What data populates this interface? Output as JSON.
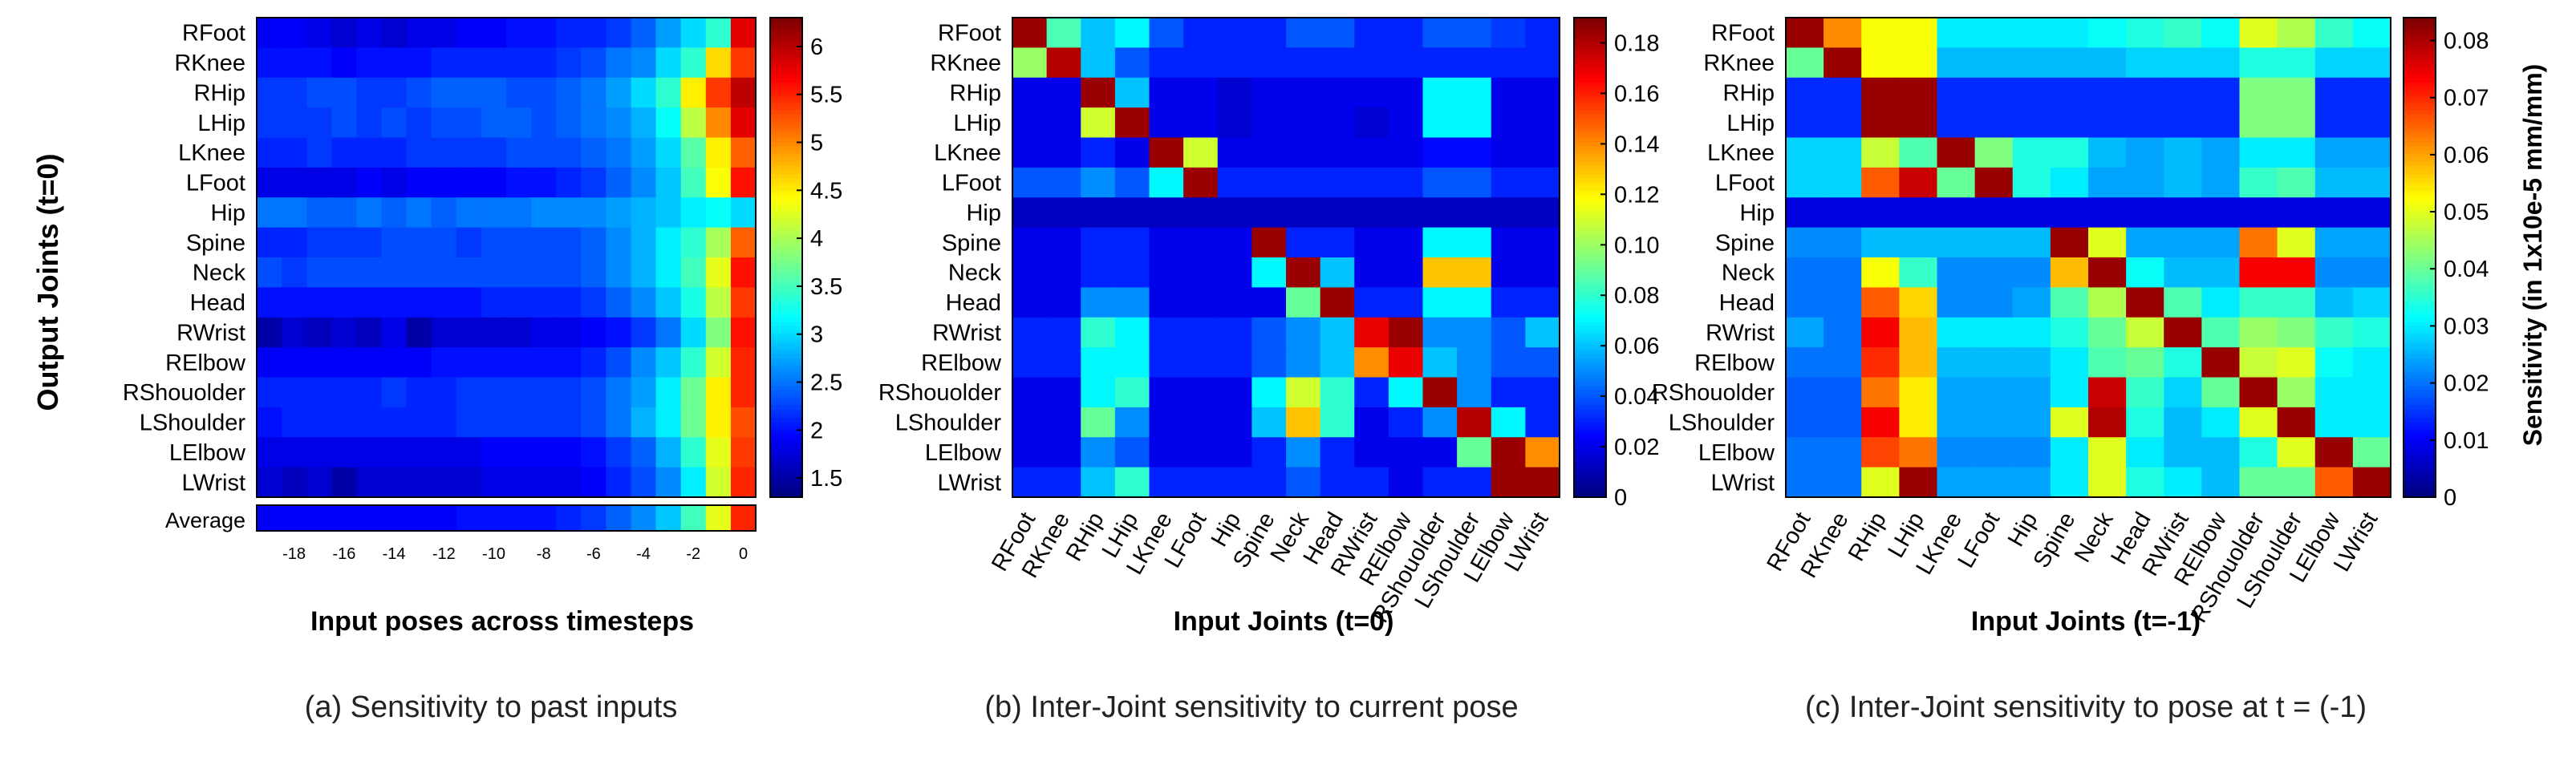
{
  "y_axis_label": "Output Joints (t=0)",
  "colorbar_label": "Sensitivity (in 1x10e-5 mm/mm)",
  "average_label": "Average",
  "chart_data": [
    {
      "type": "heatmap",
      "caption": "(a) Sensitivity to past inputs",
      "xlabel": "Input poses across timesteps",
      "ylabel": "Output Joints (t=0)",
      "rows": [
        "RFoot",
        "RKnee",
        "RHip",
        "LHip",
        "LKnee",
        "LFoot",
        "Hip",
        "Spine",
        "Neck",
        "Head",
        "RWrist",
        "RElbow",
        "RShouolder",
        "LShoulder",
        "LElbow",
        "LWrist"
      ],
      "x_ticks": [
        "-18",
        "-16",
        "-14",
        "-12",
        "-10",
        "-8",
        "-6",
        "-4",
        "-2",
        "0"
      ],
      "x_tick_values": [
        -18,
        -16,
        -14,
        -12,
        -10,
        -8,
        -6,
        -4,
        -2,
        0
      ],
      "x": [
        -19,
        -18,
        -17,
        -16,
        -15,
        -14,
        -13,
        -12,
        -11,
        -10,
        -9,
        -8,
        -7,
        -6,
        -5,
        -4,
        -3,
        -2,
        -1,
        0
      ],
      "values": [
        [
          1.9,
          1.9,
          1.8,
          1.7,
          1.8,
          1.7,
          1.8,
          1.8,
          1.9,
          1.9,
          2.0,
          2.0,
          2.1,
          2.1,
          2.2,
          2.4,
          2.7,
          3.0,
          3.4,
          5.8
        ],
        [
          2.0,
          2.0,
          2.0,
          1.9,
          2.0,
          2.0,
          2.0,
          2.1,
          2.1,
          2.1,
          2.1,
          2.1,
          2.2,
          2.3,
          2.5,
          2.6,
          3.0,
          3.4,
          4.6,
          5.4
        ],
        [
          2.2,
          2.2,
          2.3,
          2.3,
          2.2,
          2.2,
          2.3,
          2.4,
          2.4,
          2.4,
          2.3,
          2.3,
          2.4,
          2.5,
          2.7,
          3.0,
          3.4,
          4.5,
          5.4,
          6.0
        ],
        [
          2.2,
          2.2,
          2.2,
          2.3,
          2.2,
          2.3,
          2.2,
          2.3,
          2.3,
          2.4,
          2.4,
          2.3,
          2.4,
          2.5,
          2.6,
          2.8,
          3.2,
          4.1,
          5.0,
          5.8
        ],
        [
          2.1,
          2.1,
          2.2,
          2.1,
          2.1,
          2.1,
          2.2,
          2.2,
          2.2,
          2.2,
          2.3,
          2.3,
          2.3,
          2.4,
          2.5,
          2.7,
          3.0,
          3.6,
          4.5,
          5.2
        ],
        [
          1.8,
          1.8,
          1.8,
          1.8,
          1.9,
          1.8,
          1.9,
          1.9,
          1.9,
          1.9,
          2.0,
          2.0,
          2.1,
          2.2,
          2.4,
          2.6,
          2.9,
          3.5,
          4.4,
          5.6
        ],
        [
          2.5,
          2.5,
          2.4,
          2.4,
          2.5,
          2.4,
          2.5,
          2.4,
          2.5,
          2.5,
          2.5,
          2.6,
          2.6,
          2.6,
          2.7,
          2.8,
          2.9,
          3.1,
          3.2,
          3.0
        ],
        [
          2.1,
          2.1,
          2.2,
          2.2,
          2.2,
          2.3,
          2.3,
          2.3,
          2.2,
          2.3,
          2.3,
          2.3,
          2.3,
          2.4,
          2.6,
          2.8,
          3.1,
          3.4,
          4.0,
          5.2
        ],
        [
          2.3,
          2.2,
          2.3,
          2.3,
          2.3,
          2.3,
          2.3,
          2.3,
          2.3,
          2.3,
          2.3,
          2.3,
          2.3,
          2.4,
          2.6,
          2.8,
          3.1,
          3.5,
          4.3,
          5.6
        ],
        [
          2.0,
          2.0,
          2.0,
          2.0,
          2.0,
          2.0,
          2.0,
          2.0,
          2.0,
          2.1,
          2.1,
          2.1,
          2.1,
          2.2,
          2.4,
          2.6,
          2.9,
          3.3,
          4.1,
          5.4
        ],
        [
          1.5,
          1.7,
          1.6,
          1.7,
          1.6,
          1.8,
          1.5,
          1.7,
          1.7,
          1.7,
          1.7,
          1.8,
          1.8,
          1.9,
          2.0,
          2.2,
          2.5,
          3.0,
          3.8,
          5.6
        ],
        [
          1.9,
          1.9,
          1.9,
          1.9,
          1.9,
          1.9,
          1.9,
          2.0,
          2.0,
          2.0,
          2.0,
          2.0,
          2.0,
          2.1,
          2.3,
          2.6,
          2.9,
          3.4,
          4.2,
          5.5
        ],
        [
          2.1,
          2.1,
          2.1,
          2.1,
          2.1,
          2.2,
          2.1,
          2.1,
          2.2,
          2.2,
          2.2,
          2.2,
          2.2,
          2.3,
          2.5,
          2.7,
          3.1,
          3.7,
          4.5,
          5.5
        ],
        [
          2.0,
          2.1,
          2.1,
          2.1,
          2.1,
          2.1,
          2.1,
          2.1,
          2.2,
          2.2,
          2.2,
          2.2,
          2.2,
          2.3,
          2.5,
          2.8,
          3.1,
          3.7,
          4.5,
          5.3
        ],
        [
          1.8,
          1.8,
          1.8,
          1.8,
          1.8,
          1.8,
          1.8,
          1.8,
          1.8,
          1.9,
          1.9,
          1.9,
          1.9,
          2.0,
          2.2,
          2.4,
          2.8,
          3.4,
          4.3,
          5.4
        ],
        [
          1.7,
          1.6,
          1.7,
          1.5,
          1.7,
          1.7,
          1.7,
          1.7,
          1.7,
          1.8,
          1.8,
          1.8,
          1.8,
          1.9,
          2.1,
          2.3,
          2.6,
          3.1,
          4.2,
          5.5
        ]
      ],
      "average": [
        1.9,
        1.9,
        1.9,
        1.9,
        1.9,
        1.9,
        1.9,
        1.9,
        2.0,
        2.0,
        2.0,
        2.0,
        2.1,
        2.2,
        2.4,
        2.6,
        2.9,
        3.5,
        4.3,
        5.5
      ],
      "colorbar": {
        "min": 1.3,
        "max": 6.3,
        "ticks": [
          "6",
          "5.5",
          "5",
          "4.5",
          "4",
          "3.5",
          "3",
          "2.5",
          "2",
          "1.5"
        ],
        "tick_values": [
          6,
          5.5,
          5,
          4.5,
          4,
          3.5,
          3,
          2.5,
          2,
          1.5
        ]
      },
      "colormap": "jet"
    },
    {
      "type": "heatmap",
      "caption": "(b) Inter-Joint sensitivity to current pose",
      "xlabel": "Input Joints (t=0)",
      "rows": [
        "RFoot",
        "RKnee",
        "RHip",
        "LHip",
        "LKnee",
        "LFoot",
        "Hip",
        "Spine",
        "Neck",
        "Head",
        "RWrist",
        "RElbow",
        "RShouolder",
        "LShoulder",
        "LElbow",
        "LWrist"
      ],
      "cols": [
        "RFoot",
        "RKnee",
        "RHip",
        "LHip",
        "LKnee",
        "LFoot",
        "Hip",
        "Spine",
        "Neck",
        "Head",
        "RWrist",
        "RElbow",
        "RShouolder",
        "LShoulder",
        "LElbow",
        "LWrist"
      ],
      "values": [
        [
          0.185,
          0.085,
          0.06,
          0.07,
          0.04,
          0.03,
          0.03,
          0.03,
          0.04,
          0.04,
          0.03,
          0.03,
          0.04,
          0.04,
          0.035,
          0.03
        ],
        [
          0.1,
          0.18,
          0.06,
          0.04,
          0.03,
          0.03,
          0.03,
          0.03,
          0.03,
          0.03,
          0.03,
          0.03,
          0.03,
          0.03,
          0.03,
          0.03
        ],
        [
          0.02,
          0.02,
          0.185,
          0.06,
          0.02,
          0.02,
          0.015,
          0.02,
          0.02,
          0.02,
          0.02,
          0.02,
          0.07,
          0.07,
          0.02,
          0.02
        ],
        [
          0.02,
          0.02,
          0.11,
          0.185,
          0.02,
          0.02,
          0.015,
          0.02,
          0.02,
          0.02,
          0.015,
          0.02,
          0.07,
          0.07,
          0.02,
          0.02
        ],
        [
          0.02,
          0.02,
          0.03,
          0.02,
          0.185,
          0.11,
          0.02,
          0.02,
          0.02,
          0.02,
          0.02,
          0.02,
          0.025,
          0.025,
          0.02,
          0.02
        ],
        [
          0.04,
          0.04,
          0.05,
          0.04,
          0.07,
          0.185,
          0.03,
          0.03,
          0.03,
          0.03,
          0.03,
          0.03,
          0.04,
          0.04,
          0.03,
          0.03
        ],
        [
          0.012,
          0.012,
          0.012,
          0.012,
          0.012,
          0.012,
          0.012,
          0.012,
          0.012,
          0.012,
          0.012,
          0.012,
          0.012,
          0.012,
          0.012,
          0.012
        ],
        [
          0.02,
          0.02,
          0.03,
          0.03,
          0.02,
          0.02,
          0.02,
          0.185,
          0.03,
          0.03,
          0.02,
          0.02,
          0.07,
          0.07,
          0.02,
          0.02
        ],
        [
          0.02,
          0.02,
          0.03,
          0.03,
          0.02,
          0.02,
          0.02,
          0.07,
          0.185,
          0.06,
          0.02,
          0.02,
          0.13,
          0.13,
          0.02,
          0.02
        ],
        [
          0.02,
          0.02,
          0.05,
          0.05,
          0.02,
          0.02,
          0.02,
          0.02,
          0.09,
          0.185,
          0.03,
          0.03,
          0.07,
          0.07,
          0.03,
          0.03
        ],
        [
          0.03,
          0.03,
          0.08,
          0.07,
          0.03,
          0.03,
          0.03,
          0.04,
          0.05,
          0.06,
          0.17,
          0.185,
          0.05,
          0.05,
          0.04,
          0.06
        ],
        [
          0.03,
          0.03,
          0.07,
          0.07,
          0.03,
          0.03,
          0.03,
          0.04,
          0.05,
          0.06,
          0.14,
          0.17,
          0.06,
          0.05,
          0.04,
          0.04
        ],
        [
          0.02,
          0.02,
          0.07,
          0.08,
          0.02,
          0.02,
          0.02,
          0.07,
          0.11,
          0.08,
          0.03,
          0.07,
          0.185,
          0.05,
          0.03,
          0.03
        ],
        [
          0.02,
          0.02,
          0.09,
          0.05,
          0.02,
          0.02,
          0.02,
          0.06,
          0.13,
          0.08,
          0.02,
          0.03,
          0.05,
          0.18,
          0.07,
          0.03
        ],
        [
          0.02,
          0.02,
          0.05,
          0.04,
          0.02,
          0.02,
          0.02,
          0.03,
          0.05,
          0.03,
          0.02,
          0.02,
          0.02,
          0.09,
          0.185,
          0.14
        ],
        [
          0.03,
          0.03,
          0.06,
          0.08,
          0.03,
          0.03,
          0.03,
          0.03,
          0.04,
          0.03,
          0.03,
          0.02,
          0.03,
          0.03,
          0.185,
          0.185
        ]
      ],
      "colorbar": {
        "min": 0,
        "max": 0.19,
        "ticks": [
          "0.18",
          "0.16",
          "0.14",
          "0.12",
          "0.10",
          "0.08",
          "0.06",
          "0.04",
          "0.02",
          "0"
        ],
        "tick_values": [
          0.18,
          0.16,
          0.14,
          0.12,
          0.1,
          0.08,
          0.06,
          0.04,
          0.02,
          0
        ]
      },
      "colormap": "jet"
    },
    {
      "type": "heatmap",
      "caption": "(c) Inter-Joint sensitivity to pose at t = (-1)",
      "xlabel": "Input Joints (t=-1)",
      "colorbar_label": "Sensitivity (in 1x10e-5 mm/mm)",
      "rows": [
        "RFoot",
        "RKnee",
        "RHip",
        "LHip",
        "LKnee",
        "LFoot",
        "Hip",
        "Spine",
        "Neck",
        "Head",
        "RWrist",
        "RElbow",
        "RShouolder",
        "LShoulder",
        "LElbow",
        "LWrist"
      ],
      "cols": [
        "RFoot",
        "RKnee",
        "RHip",
        "LHip",
        "LKnee",
        "LFoot",
        "Hip",
        "Spine",
        "Neck",
        "Head",
        "RWrist",
        "RElbow",
        "RShouolder",
        "LShoulder",
        "LElbow",
        "LWrist"
      ],
      "values": [
        [
          0.082,
          0.062,
          0.052,
          0.052,
          0.03,
          0.03,
          0.03,
          0.03,
          0.032,
          0.034,
          0.036,
          0.032,
          0.05,
          0.046,
          0.036,
          0.032
        ],
        [
          0.04,
          0.082,
          0.052,
          0.052,
          0.026,
          0.026,
          0.026,
          0.026,
          0.026,
          0.028,
          0.028,
          0.028,
          0.034,
          0.034,
          0.028,
          0.028
        ],
        [
          0.014,
          0.014,
          0.082,
          0.082,
          0.014,
          0.014,
          0.014,
          0.014,
          0.014,
          0.014,
          0.014,
          0.014,
          0.042,
          0.042,
          0.014,
          0.014
        ],
        [
          0.014,
          0.014,
          0.082,
          0.082,
          0.014,
          0.014,
          0.014,
          0.014,
          0.014,
          0.014,
          0.014,
          0.014,
          0.042,
          0.042,
          0.014,
          0.014
        ],
        [
          0.028,
          0.028,
          0.048,
          0.038,
          0.082,
          0.042,
          0.034,
          0.034,
          0.026,
          0.024,
          0.026,
          0.024,
          0.03,
          0.03,
          0.024,
          0.024
        ],
        [
          0.028,
          0.028,
          0.066,
          0.078,
          0.04,
          0.082,
          0.034,
          0.03,
          0.024,
          0.024,
          0.026,
          0.024,
          0.036,
          0.038,
          0.026,
          0.026
        ],
        [
          0.008,
          0.008,
          0.008,
          0.008,
          0.008,
          0.008,
          0.008,
          0.008,
          0.008,
          0.008,
          0.008,
          0.008,
          0.008,
          0.008,
          0.008,
          0.008
        ],
        [
          0.022,
          0.022,
          0.026,
          0.026,
          0.026,
          0.026,
          0.026,
          0.082,
          0.05,
          0.024,
          0.024,
          0.024,
          0.064,
          0.05,
          0.024,
          0.024
        ],
        [
          0.02,
          0.02,
          0.052,
          0.036,
          0.022,
          0.022,
          0.022,
          0.058,
          0.082,
          0.032,
          0.026,
          0.026,
          0.074,
          0.074,
          0.022,
          0.022
        ],
        [
          0.02,
          0.02,
          0.066,
          0.056,
          0.022,
          0.022,
          0.024,
          0.038,
          0.046,
          0.082,
          0.038,
          0.03,
          0.036,
          0.036,
          0.026,
          0.028
        ],
        [
          0.024,
          0.02,
          0.074,
          0.058,
          0.03,
          0.03,
          0.03,
          0.034,
          0.04,
          0.048,
          0.082,
          0.038,
          0.044,
          0.042,
          0.036,
          0.034
        ],
        [
          0.02,
          0.02,
          0.07,
          0.058,
          0.026,
          0.026,
          0.026,
          0.03,
          0.038,
          0.04,
          0.034,
          0.082,
          0.048,
          0.05,
          0.032,
          0.03
        ],
        [
          0.018,
          0.018,
          0.064,
          0.054,
          0.024,
          0.024,
          0.024,
          0.03,
          0.078,
          0.036,
          0.028,
          0.04,
          0.082,
          0.044,
          0.03,
          0.03
        ],
        [
          0.018,
          0.018,
          0.074,
          0.054,
          0.024,
          0.024,
          0.024,
          0.05,
          0.08,
          0.034,
          0.026,
          0.03,
          0.05,
          0.082,
          0.03,
          0.03
        ],
        [
          0.02,
          0.02,
          0.068,
          0.064,
          0.022,
          0.022,
          0.022,
          0.03,
          0.05,
          0.03,
          0.026,
          0.026,
          0.034,
          0.05,
          0.082,
          0.04
        ],
        [
          0.02,
          0.02,
          0.05,
          0.082,
          0.024,
          0.024,
          0.024,
          0.03,
          0.05,
          0.034,
          0.03,
          0.026,
          0.04,
          0.04,
          0.066,
          0.082
        ]
      ],
      "colorbar": {
        "min": 0,
        "max": 0.084,
        "ticks": [
          "0.08",
          "0.07",
          "0.06",
          "0.05",
          "0.04",
          "0.03",
          "0.02",
          "0.01",
          "0"
        ],
        "tick_values": [
          0.08,
          0.07,
          0.06,
          0.05,
          0.04,
          0.03,
          0.02,
          0.01,
          0
        ]
      },
      "colormap": "jet"
    }
  ]
}
